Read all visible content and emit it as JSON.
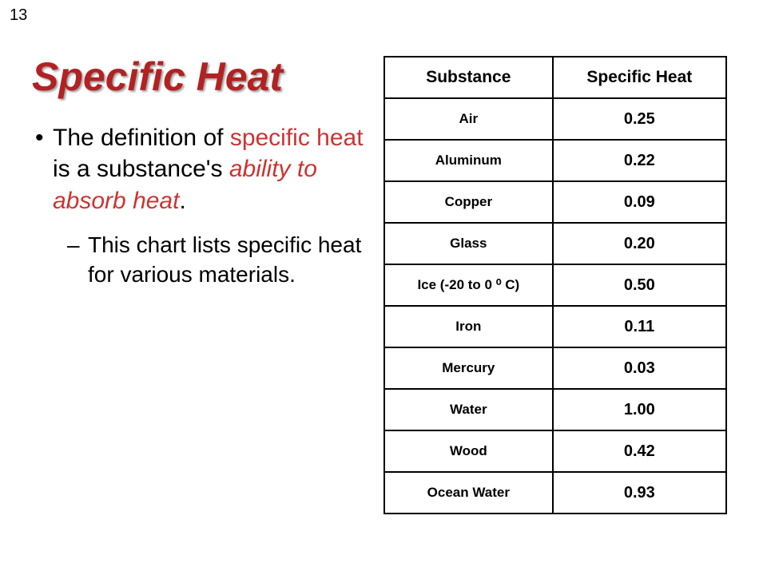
{
  "page_number": "13",
  "title": "Specific Heat",
  "bullet_main_pre": "The definition of ",
  "bullet_main_accent1": "specific heat",
  "bullet_main_mid": " is a substance's ",
  "bullet_main_accent2": "ability to absorb heat",
  "bullet_main_post": ".",
  "bullet_sub": "This chart lists specific heat for various materials.",
  "table": {
    "header_left": "Substance",
    "header_right": "Specific Heat",
    "rows": [
      {
        "substance": "Air",
        "value": "0.25"
      },
      {
        "substance": "Aluminum",
        "value": "0.22"
      },
      {
        "substance": "Copper",
        "value": "0.09"
      },
      {
        "substance": "Glass",
        "value": "0.20"
      },
      {
        "substance": "Ice (-20 to 0 ⁰ C)",
        "value": "0.50"
      },
      {
        "substance": "Iron",
        "value": "0.11"
      },
      {
        "substance": "Mercury",
        "value": "0.03"
      },
      {
        "substance": "Water",
        "value": "1.00"
      },
      {
        "substance": "Wood",
        "value": "0.42"
      },
      {
        "substance": "Ocean Water",
        "value": "0.93"
      }
    ]
  }
}
